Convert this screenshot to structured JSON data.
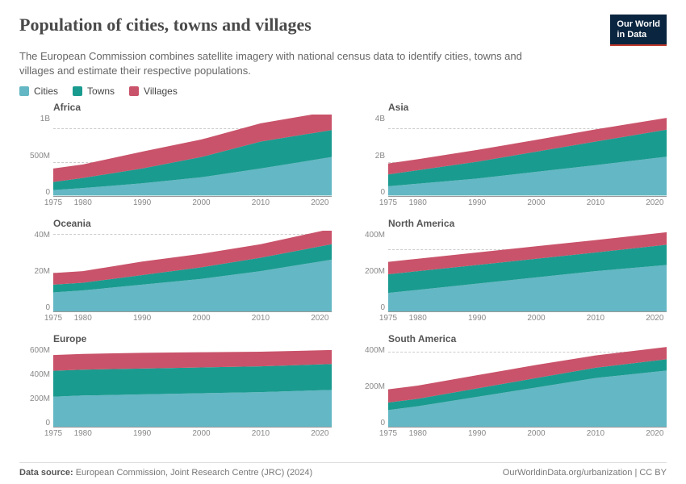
{
  "title": "Population of cities, towns and villages",
  "subtitle": "The European Commission combines satellite imagery with national census data to identify cities, towns and villages and estimate their respective populations.",
  "logo_line1": "Our World",
  "logo_line2": "in Data",
  "colors": {
    "cities": "#64b7c4",
    "towns": "#1a9b8f",
    "villages": "#c9536a",
    "grid": "#cccccc",
    "axis": "#888888",
    "background": "#ffffff"
  },
  "legend": [
    {
      "label": "Cities",
      "color": "#64b7c4"
    },
    {
      "label": "Towns",
      "color": "#1a9b8f"
    },
    {
      "label": "Villages",
      "color": "#c9536a"
    }
  ],
  "x_domain": [
    1975,
    2022
  ],
  "x_ticks": [
    "1975",
    "1980",
    "1990",
    "2000",
    "2010",
    "2020"
  ],
  "x_tick_vals": [
    1975,
    1980,
    1990,
    2000,
    2010,
    2020
  ],
  "panels": [
    {
      "title": "Africa",
      "y_max": 1200,
      "y_ticks": [
        {
          "v": 0,
          "l": "0"
        },
        {
          "v": 500,
          "l": "500M"
        },
        {
          "v": 1000,
          "l": "1B"
        }
      ],
      "years": [
        1975,
        1980,
        1990,
        2000,
        2010,
        2022
      ],
      "cities": [
        80,
        110,
        180,
        270,
        400,
        570
      ],
      "towns": [
        120,
        150,
        220,
        300,
        400,
        400
      ],
      "villages": [
        200,
        200,
        250,
        260,
        270,
        280
      ]
    },
    {
      "title": "Asia",
      "y_max": 4800,
      "y_ticks": [
        {
          "v": 0,
          "l": "0"
        },
        {
          "v": 2000,
          "l": "2B"
        },
        {
          "v": 4000,
          "l": "4B"
        }
      ],
      "years": [
        1975,
        1980,
        1990,
        2000,
        2010,
        2022
      ],
      "cities": [
        550,
        700,
        1000,
        1400,
        1800,
        2300
      ],
      "towns": [
        700,
        800,
        1000,
        1200,
        1400,
        1600
      ],
      "villages": [
        650,
        650,
        700,
        700,
        720,
        700
      ]
    },
    {
      "title": "Oceania",
      "y_max": 42,
      "y_ticks": [
        {
          "v": 0,
          "l": "0"
        },
        {
          "v": 20,
          "l": "20M"
        },
        {
          "v": 40,
          "l": "40M"
        }
      ],
      "years": [
        1975,
        1980,
        1990,
        2000,
        2010,
        2022
      ],
      "cities": [
        10,
        11,
        14,
        17,
        21,
        27
      ],
      "towns": [
        4,
        4,
        5,
        6,
        7,
        8
      ],
      "villages": [
        6,
        6,
        7,
        7,
        7,
        8
      ]
    },
    {
      "title": "North America",
      "y_max": 520,
      "y_ticks": [
        {
          "v": 0,
          "l": "0"
        },
        {
          "v": 200,
          "l": "200M"
        },
        {
          "v": 400,
          "l": "400M"
        }
      ],
      "years": [
        1975,
        1980,
        1990,
        2000,
        2010,
        2022
      ],
      "cities": [
        120,
        140,
        180,
        220,
        260,
        300
      ],
      "towns": [
        120,
        120,
        120,
        120,
        120,
        130
      ],
      "villages": [
        80,
        80,
        80,
        80,
        80,
        80
      ]
    },
    {
      "title": "Europe",
      "y_max": 720,
      "y_ticks": [
        {
          "v": 0,
          "l": "0"
        },
        {
          "v": 200,
          "l": "200M"
        },
        {
          "v": 400,
          "l": "400M"
        },
        {
          "v": 600,
          "l": "600M"
        }
      ],
      "years": [
        1975,
        1980,
        1990,
        2000,
        2010,
        2022
      ],
      "cities": [
        270,
        280,
        290,
        300,
        310,
        330
      ],
      "towns": [
        230,
        230,
        230,
        230,
        230,
        230
      ],
      "villages": [
        140,
        140,
        140,
        135,
        130,
        125
      ]
    },
    {
      "title": "South America",
      "y_max": 430,
      "y_ticks": [
        {
          "v": 0,
          "l": "0"
        },
        {
          "v": 200,
          "l": "200M"
        },
        {
          "v": 400,
          "l": "400M"
        }
      ],
      "years": [
        1975,
        1980,
        1990,
        2000,
        2010,
        2022
      ],
      "cities": [
        90,
        110,
        160,
        210,
        260,
        300
      ],
      "towns": [
        40,
        40,
        45,
        50,
        55,
        60
      ],
      "villages": [
        70,
        70,
        70,
        70,
        65,
        65
      ]
    }
  ],
  "footer": {
    "source_label": "Data source:",
    "source_text": "European Commission, Joint Research Centre (JRC) (2024)",
    "right": "OurWorldinData.org/urbanization | CC BY"
  },
  "typography": {
    "title_fontsize": 22,
    "subtitle_fontsize": 13,
    "panel_title_fontsize": 12,
    "axis_fontsize": 10,
    "legend_fontsize": 12
  },
  "chart_type": "stacked-area"
}
